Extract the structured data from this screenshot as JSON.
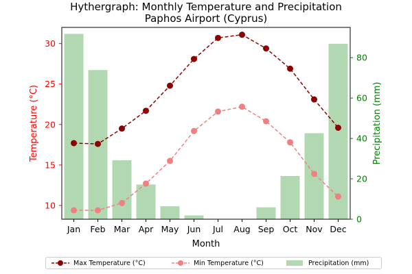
{
  "chart_data": {
    "type": "bar+line",
    "title": "Hythergraph: Monthly Temperature and Precipitation",
    "subtitle": "Paphos Airport (Cyprus)",
    "xlabel": "Month",
    "ylabel_left": "Temperature (°C)",
    "ylabel_right": "Precipitation (mm)",
    "categories": [
      "Jan",
      "Feb",
      "Mar",
      "Apr",
      "May",
      "Jun",
      "Jul",
      "Aug",
      "Sep",
      "Oct",
      "Nov",
      "Dec"
    ],
    "ylim_left": [
      8.3,
      32.0
    ],
    "ylim_right": [
      0,
      95
    ],
    "yticks_left": [
      10,
      15,
      20,
      25,
      30
    ],
    "yticks_right": [
      0,
      20,
      40,
      60,
      80
    ],
    "grid": false,
    "legend_position": "bottom-center",
    "series": [
      {
        "name": "Max Temperature (°C)",
        "axis": "left",
        "kind": "line",
        "color": "#8b0000",
        "values": [
          17.7,
          17.6,
          19.5,
          21.7,
          24.8,
          28.1,
          30.7,
          31.1,
          29.4,
          26.9,
          23.1,
          19.6
        ]
      },
      {
        "name": "Min Temperature (°C)",
        "axis": "left",
        "kind": "line",
        "color": "#f08080",
        "values": [
          9.4,
          9.4,
          10.3,
          12.7,
          15.5,
          19.2,
          21.6,
          22.2,
          20.4,
          17.8,
          13.9,
          11.1
        ]
      },
      {
        "name": "Precipitation (mm)",
        "axis": "right",
        "kind": "bar",
        "color": "#b2d8b2",
        "values": [
          91.8,
          73.9,
          29.2,
          17.2,
          6.4,
          1.9,
          0,
          0,
          5.9,
          21.4,
          42.6,
          86.9
        ]
      }
    ]
  }
}
